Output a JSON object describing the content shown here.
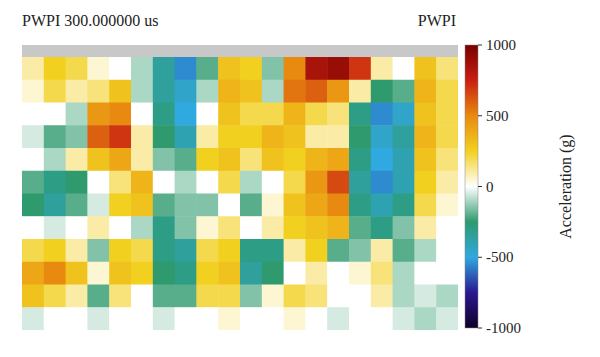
{
  "chart_data": {
    "type": "heatmap",
    "title": "PWPI 300.000000 us",
    "subtitle": "PWPI",
    "colorbar_label": "Acceleration (g)",
    "cells": [
      [
        100,
        250,
        200,
        50,
        0,
        -100,
        -350,
        -550,
        -200,
        300,
        250,
        -150,
        500,
        850,
        900,
        700,
        100,
        0,
        300,
        150
      ],
      [
        50,
        200,
        100,
        150,
        300,
        -100,
        -350,
        -450,
        -100,
        350,
        300,
        -100,
        550,
        600,
        450,
        100,
        -250,
        -200,
        350,
        200
      ],
      [
        0,
        0,
        -100,
        450,
        500,
        0,
        -300,
        -500,
        0,
        300,
        200,
        200,
        350,
        200,
        150,
        -300,
        -550,
        -450,
        300,
        200
      ],
      [
        -50,
        -200,
        -150,
        600,
        700,
        100,
        -250,
        -400,
        100,
        250,
        250,
        350,
        300,
        100,
        100,
        -250,
        -450,
        -350,
        350,
        200
      ],
      [
        0,
        -100,
        100,
        300,
        400,
        100,
        -150,
        -200,
        250,
        300,
        150,
        300,
        250,
        350,
        400,
        -300,
        -500,
        -400,
        300,
        150
      ],
      [
        -200,
        -300,
        -250,
        0,
        150,
        350,
        0,
        -100,
        0,
        200,
        -100,
        0,
        200,
        450,
        650,
        -350,
        -550,
        -400,
        250,
        100
      ],
      [
        -250,
        -350,
        -200,
        -50,
        250,
        300,
        -200,
        -150,
        -150,
        0,
        -200,
        50,
        300,
        400,
        500,
        -300,
        -400,
        -300,
        200,
        50
      ],
      [
        0,
        -50,
        0,
        100,
        0,
        -100,
        -300,
        -150,
        50,
        150,
        0,
        100,
        250,
        300,
        350,
        -200,
        -300,
        -150,
        100,
        0
      ],
      [
        200,
        250,
        100,
        -150,
        250,
        200,
        -300,
        -350,
        200,
        250,
        -300,
        -300,
        100,
        250,
        -200,
        -150,
        100,
        -200,
        -100,
        0
      ],
      [
        400,
        500,
        300,
        50,
        300,
        250,
        -250,
        -300,
        250,
        300,
        -350,
        -250,
        0,
        100,
        0,
        50,
        150,
        -100,
        0,
        0
      ],
      [
        300,
        200,
        100,
        -200,
        150,
        0,
        -200,
        -200,
        200,
        200,
        -150,
        50,
        200,
        150,
        0,
        0,
        100,
        -100,
        -50,
        -100
      ],
      [
        -50,
        0,
        0,
        -50,
        0,
        0,
        -50,
        0,
        0,
        50,
        0,
        0,
        50,
        0,
        -50,
        0,
        0,
        -50,
        -100,
        -50
      ]
    ],
    "color_range": [
      -1000,
      1000
    ],
    "color_ticks": [
      -1000,
      -500,
      0,
      500,
      1000
    ]
  }
}
